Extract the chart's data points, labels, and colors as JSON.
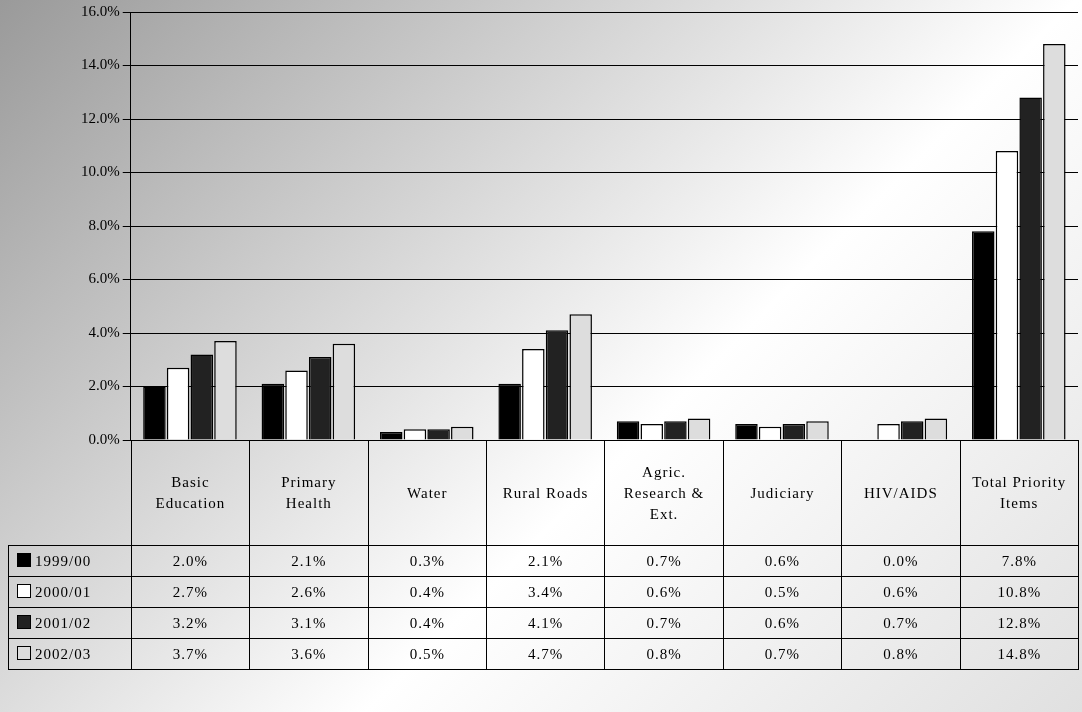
{
  "chart_data": {
    "type": "bar",
    "categories": [
      "Basic Education",
      "Primary Health",
      "Water",
      "Rural Roads",
      "Agric. Research & Ext.",
      "Judiciary",
      "HIV/AIDS",
      "Total Priority Items"
    ],
    "series": [
      {
        "name": "1999/00",
        "color": "#000000",
        "values": [
          2.0,
          2.1,
          0.3,
          2.1,
          0.7,
          0.6,
          0.0,
          7.8
        ],
        "value_labels": [
          "2.0%",
          "2.1%",
          "0.3%",
          "2.1%",
          "0.7%",
          "0.6%",
          "0.0%",
          "7.8%"
        ]
      },
      {
        "name": "2000/01",
        "color": "#ffffff",
        "values": [
          2.7,
          2.6,
          0.4,
          3.4,
          0.6,
          0.5,
          0.6,
          10.8
        ],
        "value_labels": [
          "2.7%",
          "2.6%",
          "0.4%",
          "3.4%",
          "0.6%",
          "0.5%",
          "0.6%",
          "10.8%"
        ]
      },
      {
        "name": "2001/02",
        "color": "#222222",
        "values": [
          3.2,
          3.1,
          0.4,
          4.1,
          0.7,
          0.6,
          0.7,
          12.8
        ],
        "value_labels": [
          "3.2%",
          "3.1%",
          "0.4%",
          "4.1%",
          "0.7%",
          "0.6%",
          "0.7%",
          "12.8%"
        ]
      },
      {
        "name": "2002/03",
        "color": "#dddddd",
        "values": [
          3.7,
          3.6,
          0.5,
          4.7,
          0.8,
          0.7,
          0.8,
          14.8
        ],
        "value_labels": [
          "3.7%",
          "3.6%",
          "0.5%",
          "4.7%",
          "0.8%",
          "0.7%",
          "0.8%",
          "14.8%"
        ]
      }
    ],
    "ylim": [
      0,
      16
    ],
    "yticks": [
      {
        "value": 0,
        "label": "0.0%"
      },
      {
        "value": 2,
        "label": "2.0%"
      },
      {
        "value": 4,
        "label": "4.0%"
      },
      {
        "value": 6,
        "label": "6.0%"
      },
      {
        "value": 8,
        "label": "8.0%"
      },
      {
        "value": 10,
        "label": "10.0%"
      },
      {
        "value": 12,
        "label": "12.0%"
      },
      {
        "value": 14,
        "label": "14.0%"
      },
      {
        "value": 16,
        "label": "16.0%"
      }
    ],
    "grid": "y",
    "legend": "bottom"
  }
}
